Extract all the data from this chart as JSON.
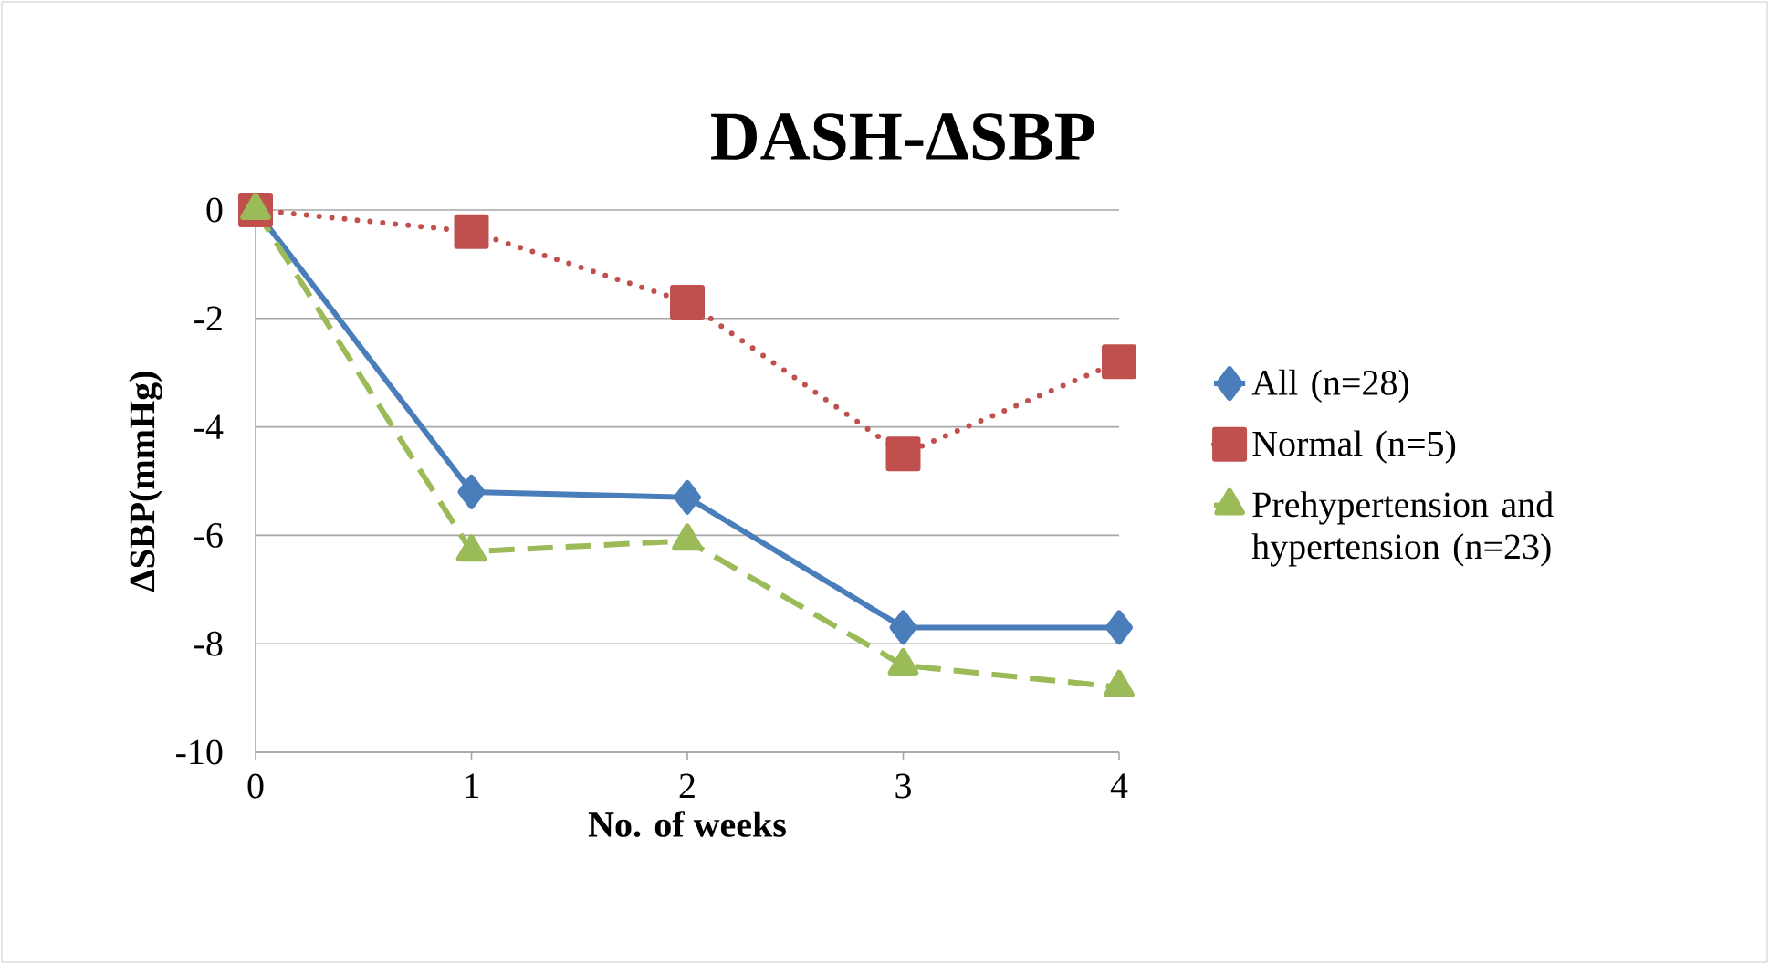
{
  "chart_data": {
    "type": "line",
    "title": "DASH-ΔSBP",
    "xlabel": "No. of weeks",
    "ylabel": "ΔSBP(mmHg)",
    "x": [
      0,
      1,
      2,
      3,
      4
    ],
    "series": [
      {
        "name": "All (n=28)",
        "color": "#4a7ebb",
        "marker": "diamond",
        "line_style": "solid",
        "values": [
          0,
          -5.2,
          -5.3,
          -7.7,
          -7.7
        ]
      },
      {
        "name": "Normal (n=5)",
        "color": "#c0504d",
        "marker": "square",
        "line_style": "dotted",
        "values": [
          0,
          -0.4,
          -1.7,
          -4.5,
          -2.8
        ]
      },
      {
        "name": "Prehypertension and hypertension (n=23)",
        "color": "#9bbb59",
        "marker": "triangle",
        "line_style": "dashed",
        "values": [
          0,
          -6.3,
          -6.1,
          -8.4,
          -8.8
        ]
      }
    ],
    "xlim": [
      0,
      4
    ],
    "xticks": [
      0,
      1,
      2,
      3,
      4
    ],
    "ylim": [
      -10,
      0
    ],
    "yticks": [
      -10,
      -8,
      -6,
      -4,
      -2,
      0
    ],
    "grid": "y",
    "legend": "right"
  }
}
